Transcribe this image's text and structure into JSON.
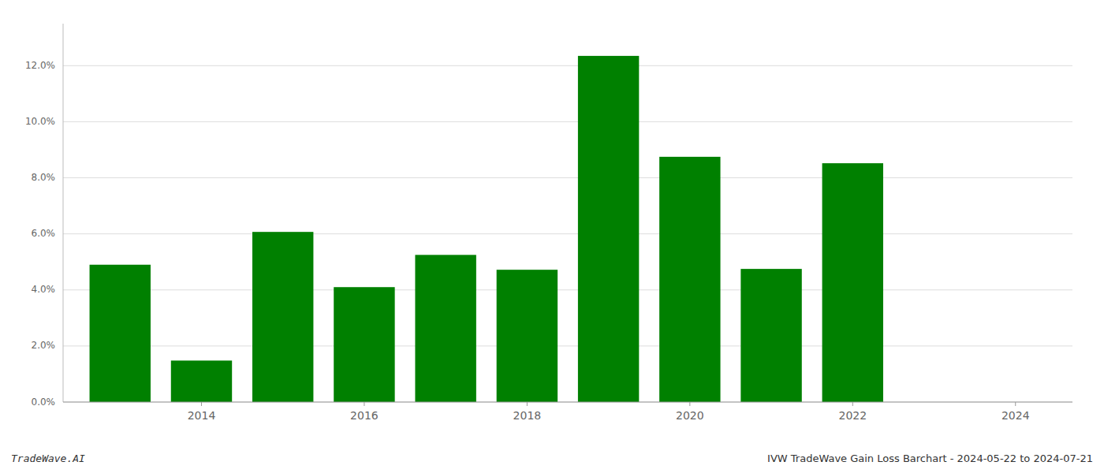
{
  "chart_data": {
    "type": "bar",
    "x": [
      2013,
      2014,
      2015,
      2016,
      2017,
      2018,
      2019,
      2020,
      2021,
      2022
    ],
    "values": [
      0.049,
      0.0148,
      0.0607,
      0.041,
      0.0525,
      0.0472,
      0.1235,
      0.0875,
      0.0475,
      0.0852
    ],
    "color": "#008000",
    "xlim": [
      2012.3,
      2024.7
    ],
    "xticks": [
      2014,
      2016,
      2018,
      2020,
      2022,
      2024
    ],
    "ylim": [
      0,
      0.135
    ],
    "yticks": [
      {
        "value": 0.0,
        "label": "0.0%"
      },
      {
        "value": 0.02,
        "label": "2.0%"
      },
      {
        "value": 0.04,
        "label": "4.0%"
      },
      {
        "value": 0.06,
        "label": "6.0%"
      },
      {
        "value": 0.08,
        "label": "8.0%"
      },
      {
        "value": 0.1,
        "label": "10.0%"
      },
      {
        "value": 0.12,
        "label": "12.0%"
      }
    ],
    "grid": true,
    "annotations": [
      "TradeWave.AI",
      "IVW TradeWave Gain Loss Barchart - 2024-05-22 to 2024-07-21"
    ]
  }
}
